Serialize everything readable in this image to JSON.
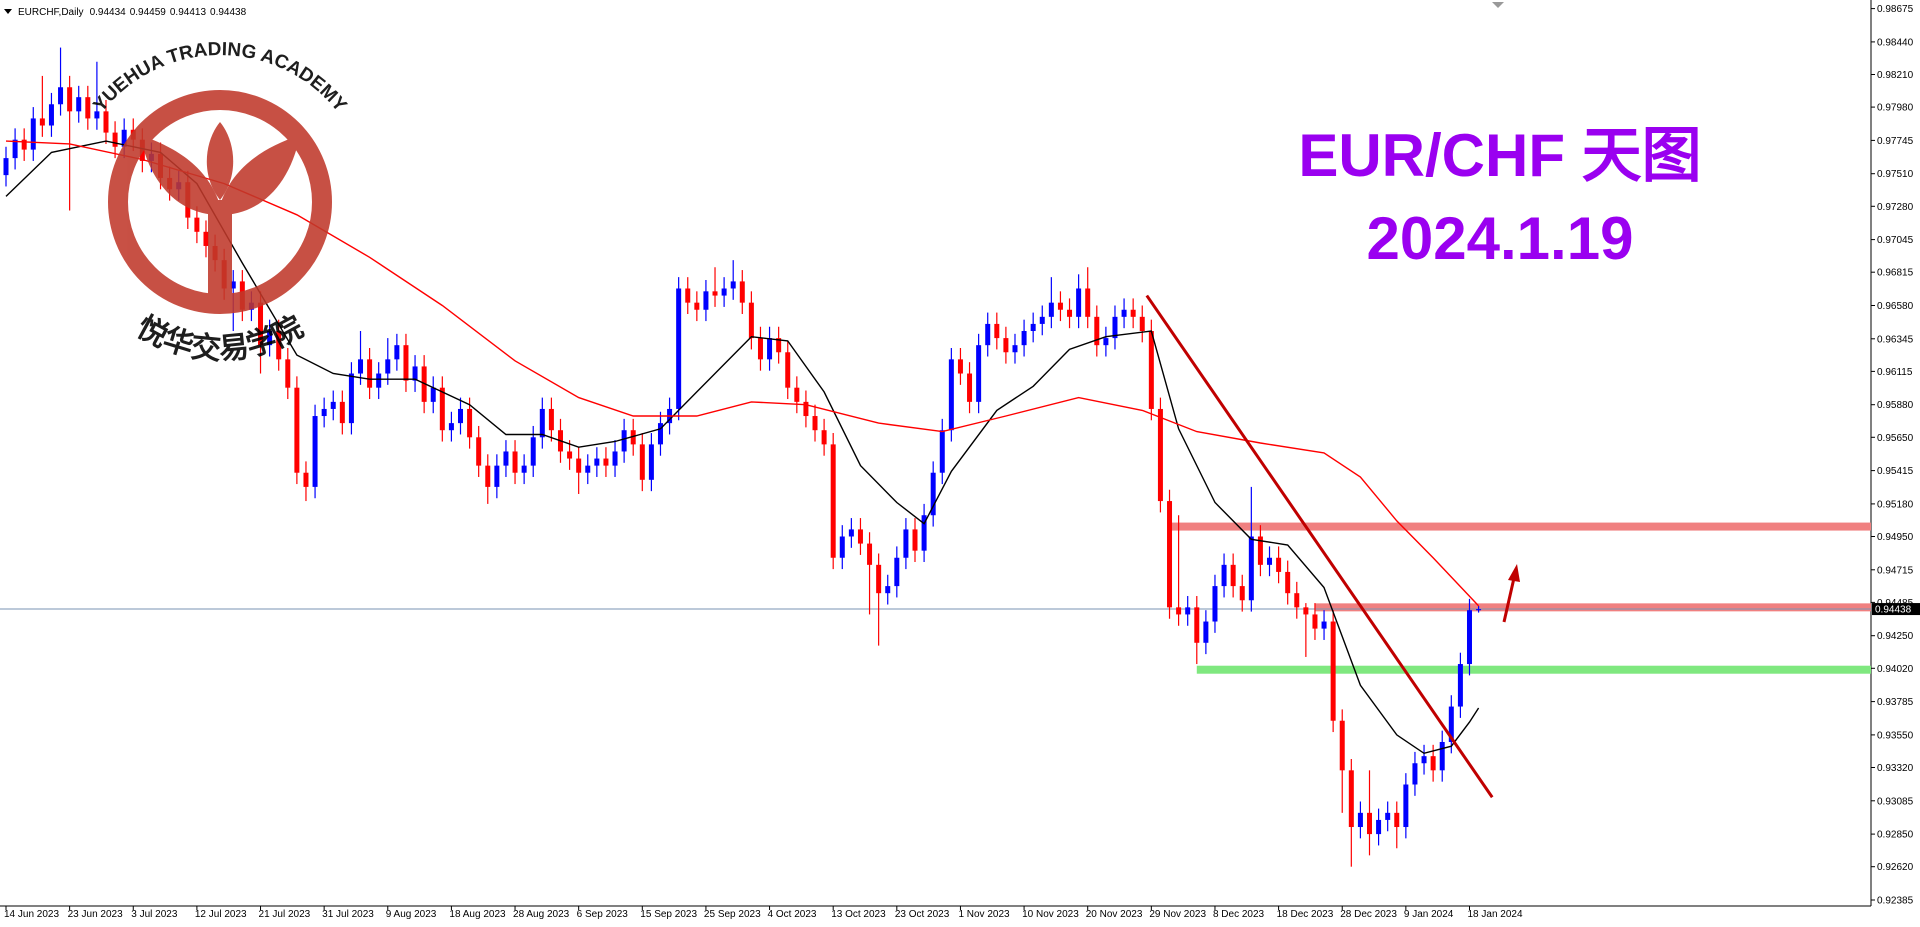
{
  "chart_data": {
    "type": "candlestick",
    "title": "EURCHF,Daily",
    "annotations": [
      "EUR/CHF 天图",
      "2024.1.19"
    ],
    "up_color": "#0000ff",
    "down_color": "#ff0000",
    "categories": [
      "14 Jun 2023",
      null,
      null,
      null,
      null,
      null,
      null,
      "23 Jun 2023",
      null,
      null,
      null,
      null,
      null,
      null,
      "3 Jul 2023",
      null,
      null,
      null,
      null,
      null,
      null,
      "12 Jul 2023",
      null,
      null,
      null,
      null,
      null,
      null,
      "21 Jul 2023",
      null,
      null,
      null,
      null,
      null,
      null,
      "31 Jul 2023",
      null,
      null,
      null,
      null,
      null,
      null,
      "9 Aug 2023",
      null,
      null,
      null,
      null,
      null,
      null,
      "18 Aug 2023",
      null,
      null,
      null,
      null,
      null,
      null,
      "28 Aug 2023",
      null,
      null,
      null,
      null,
      null,
      null,
      "6 Sep 2023",
      null,
      null,
      null,
      null,
      null,
      null,
      "15 Sep 2023",
      null,
      null,
      null,
      null,
      null,
      null,
      "25 Sep 2023",
      null,
      null,
      null,
      null,
      null,
      null,
      "4 Oct 2023",
      null,
      null,
      null,
      null,
      null,
      null,
      "13 Oct 2023",
      null,
      null,
      null,
      null,
      null,
      null,
      "23 Oct 2023",
      null,
      null,
      null,
      null,
      null,
      null,
      "1 Nov 2023",
      null,
      null,
      null,
      null,
      null,
      null,
      "10 Nov 2023",
      null,
      null,
      null,
      null,
      null,
      null,
      "20 Nov 2023",
      null,
      null,
      null,
      null,
      null,
      null,
      "29 Nov 2023",
      null,
      null,
      null,
      null,
      null,
      null,
      "8 Dec 2023",
      null,
      null,
      null,
      null,
      null,
      null,
      "18 Dec 2023",
      null,
      null,
      null,
      null,
      null,
      null,
      "28 Dec 2023",
      null,
      null,
      null,
      null,
      null,
      null,
      "9 Jan 2024",
      null,
      null,
      null,
      null,
      null,
      null,
      "18 Jan 2024",
      null
    ],
    "open": [
      0.975,
      0.9762,
      0.9775,
      0.9768,
      0.979,
      0.9785,
      0.98,
      0.9812,
      0.9795,
      0.9805,
      0.979,
      0.9795,
      0.978,
      0.977,
      0.9782,
      0.9775,
      0.976,
      0.9765,
      0.9748,
      0.974,
      0.9745,
      0.972,
      0.971,
      0.97,
      0.969,
      0.967,
      0.9675,
      0.9655,
      0.966,
      0.963,
      0.964,
      0.962,
      0.96,
      0.954,
      0.953,
      0.958,
      0.9585,
      0.959,
      0.9575,
      0.961,
      0.962,
      0.96,
      0.961,
      0.962,
      0.963,
      0.9605,
      0.9615,
      0.959,
      0.96,
      0.957,
      0.9575,
      0.9585,
      0.9565,
      0.9545,
      0.953,
      0.9545,
      0.9555,
      0.954,
      0.9545,
      0.9565,
      0.9585,
      0.957,
      0.9555,
      0.955,
      0.954,
      0.9545,
      0.955,
      0.9545,
      0.9555,
      0.957,
      0.956,
      0.9535,
      0.956,
      0.9575,
      0.9585,
      0.967,
      0.966,
      0.9655,
      0.9668,
      0.9665,
      0.967,
      0.9675,
      0.966,
      0.9635,
      0.962,
      0.9635,
      0.9625,
      0.96,
      0.959,
      0.958,
      0.957,
      0.956,
      0.948,
      0.9495,
      0.95,
      0.949,
      0.9475,
      0.9455,
      0.946,
      0.948,
      0.95,
      0.9485,
      0.951,
      0.954,
      0.957,
      0.962,
      0.961,
      0.959,
      0.963,
      0.9645,
      0.9635,
      0.9625,
      0.963,
      0.964,
      0.9645,
      0.965,
      0.966,
      0.9655,
      0.965,
      0.967,
      0.965,
      0.963,
      0.9635,
      0.965,
      0.9655,
      0.965,
      0.964,
      0.9585,
      0.952,
      0.9445,
      0.944,
      0.9445,
      0.942,
      0.9435,
      0.946,
      0.9475,
      0.946,
      0.945,
      0.9495,
      0.9475,
      0.948,
      0.947,
      0.9455,
      0.9445,
      0.944,
      0.943,
      0.9435,
      0.9365,
      0.933,
      0.929,
      0.93,
      0.9285,
      0.9295,
      0.93,
      0.929,
      0.932,
      0.9335,
      0.934,
      0.933,
      0.935,
      0.9375,
      0.9405,
      0.94434
    ],
    "high": [
      0.977,
      0.9783,
      0.9783,
      0.9798,
      0.982,
      0.9808,
      0.984,
      0.982,
      0.9813,
      0.9813,
      0.983,
      0.9803,
      0.9788,
      0.979,
      0.979,
      0.9783,
      0.9773,
      0.9773,
      0.9756,
      0.9753,
      0.9753,
      0.9728,
      0.9718,
      0.9708,
      0.9698,
      0.9683,
      0.9683,
      0.9668,
      0.9668,
      0.9648,
      0.9648,
      0.9628,
      0.9608,
      0.9548,
      0.9588,
      0.9593,
      0.9598,
      0.9598,
      0.9618,
      0.964,
      0.9628,
      0.9618,
      0.9635,
      0.9638,
      0.9638,
      0.9623,
      0.9623,
      0.9608,
      0.9608,
      0.9583,
      0.9593,
      0.9593,
      0.9573,
      0.9553,
      0.9553,
      0.9563,
      0.9563,
      0.9553,
      0.9573,
      0.9593,
      0.9593,
      0.9578,
      0.9563,
      0.9558,
      0.9553,
      0.9558,
      0.9558,
      0.9563,
      0.9578,
      0.9578,
      0.9568,
      0.9568,
      0.9583,
      0.9593,
      0.9678,
      0.9678,
      0.9668,
      0.9676,
      0.9685,
      0.9678,
      0.969,
      0.9683,
      0.9668,
      0.9643,
      0.9643,
      0.9643,
      0.9633,
      0.9608,
      0.9598,
      0.9588,
      0.9578,
      0.9568,
      0.9503,
      0.9508,
      0.9508,
      0.9498,
      0.9483,
      0.9468,
      0.9488,
      0.9508,
      0.9508,
      0.9518,
      0.9548,
      0.9578,
      0.9628,
      0.9628,
      0.9618,
      0.9638,
      0.9653,
      0.9653,
      0.9643,
      0.9638,
      0.9648,
      0.9653,
      0.9658,
      0.9678,
      0.9668,
      0.9663,
      0.968,
      0.9685,
      0.9658,
      0.9643,
      0.9658,
      0.9663,
      0.9663,
      0.9658,
      0.9648,
      0.9593,
      0.9528,
      0.951,
      0.9453,
      0.9453,
      0.9443,
      0.9468,
      0.9483,
      0.9483,
      0.9468,
      0.953,
      0.9503,
      0.9488,
      0.9488,
      0.9478,
      0.9463,
      0.9448,
      0.9448,
      0.9443,
      0.9443,
      0.9373,
      0.9338,
      0.9308,
      0.933,
      0.9303,
      0.9308,
      0.9308,
      0.9328,
      0.9343,
      0.9348,
      0.9348,
      0.9358,
      0.9383,
      0.9413,
      0.9451,
      0.94459
    ],
    "low": [
      0.9742,
      0.9754,
      0.976,
      0.976,
      0.9777,
      0.9777,
      0.9792,
      0.9725,
      0.9787,
      0.9782,
      0.9782,
      0.9772,
      0.9762,
      0.9762,
      0.9767,
      0.9752,
      0.9752,
      0.974,
      0.9732,
      0.9732,
      0.9712,
      0.9702,
      0.9692,
      0.9682,
      0.9662,
      0.964,
      0.9647,
      0.9647,
      0.961,
      0.9622,
      0.9612,
      0.9592,
      0.9532,
      0.952,
      0.9522,
      0.9572,
      0.9577,
      0.9567,
      0.9567,
      0.9602,
      0.9592,
      0.9592,
      0.9602,
      0.9612,
      0.9597,
      0.9597,
      0.9582,
      0.9582,
      0.9562,
      0.9562,
      0.9567,
      0.9557,
      0.9537,
      0.9518,
      0.9522,
      0.9537,
      0.9532,
      0.9532,
      0.9537,
      0.9557,
      0.9562,
      0.9547,
      0.9542,
      0.9525,
      0.9532,
      0.9537,
      0.9537,
      0.9537,
      0.9547,
      0.9552,
      0.9527,
      0.9527,
      0.9552,
      0.9567,
      0.9577,
      0.9652,
      0.9647,
      0.9647,
      0.9657,
      0.9657,
      0.9662,
      0.9652,
      0.9627,
      0.9612,
      0.9612,
      0.9617,
      0.9592,
      0.9582,
      0.9572,
      0.9562,
      0.9552,
      0.9472,
      0.9472,
      0.9487,
      0.9482,
      0.944,
      0.9418,
      0.9447,
      0.9452,
      0.9472,
      0.9477,
      0.9477,
      0.9502,
      0.9532,
      0.9562,
      0.9602,
      0.9582,
      0.9582,
      0.9622,
      0.9627,
      0.9617,
      0.9617,
      0.9622,
      0.9632,
      0.9637,
      0.9642,
      0.9647,
      0.9642,
      0.9642,
      0.9642,
      0.9622,
      0.9622,
      0.9627,
      0.9642,
      0.9642,
      0.9632,
      0.9577,
      0.9512,
      0.9437,
      0.9432,
      0.9432,
      0.9405,
      0.9412,
      0.9427,
      0.9452,
      0.9452,
      0.9442,
      0.9442,
      0.9467,
      0.9467,
      0.9462,
      0.9447,
      0.9437,
      0.941,
      0.9422,
      0.9422,
      0.9357,
      0.93,
      0.9262,
      0.9282,
      0.927,
      0.9277,
      0.9287,
      0.9275,
      0.9282,
      0.9312,
      0.9327,
      0.9322,
      0.9322,
      0.9342,
      0.9367,
      0.9397,
      0.94413
    ],
    "close": [
      0.9762,
      0.9775,
      0.9768,
      0.979,
      0.9785,
      0.98,
      0.9812,
      0.9795,
      0.9805,
      0.979,
      0.9795,
      0.978,
      0.977,
      0.9782,
      0.9775,
      0.976,
      0.9765,
      0.9748,
      0.974,
      0.9745,
      0.972,
      0.971,
      0.97,
      0.969,
      0.967,
      0.9675,
      0.9655,
      0.966,
      0.963,
      0.964,
      0.962,
      0.96,
      0.954,
      0.953,
      0.958,
      0.9585,
      0.959,
      0.9575,
      0.961,
      0.962,
      0.96,
      0.961,
      0.962,
      0.963,
      0.9605,
      0.9615,
      0.959,
      0.96,
      0.957,
      0.9575,
      0.9585,
      0.9565,
      0.9545,
      0.953,
      0.9545,
      0.9555,
      0.954,
      0.9545,
      0.9565,
      0.9585,
      0.957,
      0.9555,
      0.955,
      0.954,
      0.9545,
      0.955,
      0.9545,
      0.9555,
      0.957,
      0.956,
      0.9535,
      0.956,
      0.9575,
      0.9585,
      0.967,
      0.966,
      0.9655,
      0.9668,
      0.9665,
      0.967,
      0.9675,
      0.966,
      0.9635,
      0.962,
      0.9635,
      0.9625,
      0.96,
      0.959,
      0.958,
      0.957,
      0.956,
      0.948,
      0.9495,
      0.95,
      0.949,
      0.9475,
      0.9455,
      0.946,
      0.948,
      0.95,
      0.9485,
      0.951,
      0.954,
      0.957,
      0.962,
      0.961,
      0.959,
      0.963,
      0.9645,
      0.9635,
      0.9625,
      0.963,
      0.964,
      0.9645,
      0.965,
      0.966,
      0.9655,
      0.965,
      0.967,
      0.965,
      0.963,
      0.9635,
      0.965,
      0.9655,
      0.965,
      0.964,
      0.9585,
      0.952,
      0.9445,
      0.944,
      0.9445,
      0.942,
      0.9435,
      0.946,
      0.9475,
      0.946,
      0.945,
      0.9495,
      0.9475,
      0.948,
      0.947,
      0.9455,
      0.9445,
      0.944,
      0.943,
      0.9435,
      0.9365,
      0.933,
      0.929,
      0.93,
      0.9285,
      0.9295,
      0.93,
      0.929,
      0.932,
      0.9335,
      0.934,
      0.933,
      0.935,
      0.9375,
      0.9405,
      0.9443,
      0.94438
    ],
    "ylim": [
      0.92385,
      0.98675
    ],
    "yticks": [
      0.98675,
      {
        "value": 0.9844,
        "label": "0.98440"
      },
      {
        "value": 0.9821,
        "label": "0.98210"
      },
      {
        "value": 0.9798,
        "label": "0.97980"
      },
      0.97745,
      {
        "value": 0.9751,
        "label": "0.97510"
      },
      {
        "value": 0.9728,
        "label": "0.97280"
      },
      0.97045,
      0.96815,
      {
        "value": 0.9658,
        "label": "0.96580"
      },
      0.96345,
      0.96115,
      {
        "value": 0.9588,
        "label": "0.95880"
      },
      {
        "value": 0.9565,
        "label": "0.95650"
      },
      0.95415,
      {
        "value": 0.9518,
        "label": "0.95180"
      },
      {
        "value": 0.9495,
        "label": "0.94950"
      },
      0.94715,
      0.94485,
      {
        "value": 0.9425,
        "label": "0.94250"
      },
      {
        "value": 0.9402,
        "label": "0.94020"
      },
      0.93785,
      {
        "value": 0.9355,
        "label": "0.93550"
      },
      {
        "value": 0.9332,
        "label": "0.93320"
      },
      0.93085,
      {
        "value": 0.9285,
        "label": "0.92850"
      },
      {
        "value": 0.9262,
        "label": "0.92620"
      },
      0.92385
    ],
    "overlays": [
      {
        "color": "#000000",
        "x": [
          0,
          5,
          11,
          17,
          21,
          26,
          32,
          36,
          40,
          45,
          51,
          55,
          59,
          63,
          67,
          72,
          76,
          82,
          86,
          90,
          94,
          98,
          101,
          104,
          109,
          113,
          117,
          121,
          126,
          129,
          133,
          137,
          141,
          145,
          149,
          153,
          156,
          159,
          161,
          162
        ],
        "values": [
          0.9735,
          0.9766,
          0.9774,
          0.9766,
          0.9744,
          0.9688,
          0.9623,
          0.961,
          0.9606,
          0.9606,
          0.9588,
          0.9567,
          0.9567,
          0.9558,
          0.9562,
          0.9571,
          0.9597,
          0.9636,
          0.9633,
          0.9597,
          0.9545,
          0.9519,
          0.9504,
          0.9541,
          0.9584,
          0.9601,
          0.9627,
          0.9636,
          0.964,
          0.9571,
          0.9519,
          0.9493,
          0.9489,
          0.9459,
          0.939,
          0.9355,
          0.9342,
          0.9347,
          0.9364,
          0.9374
        ]
      },
      {
        "color": "#ff0000",
        "x": [
          0,
          7,
          15,
          24,
          32,
          40,
          48,
          56,
          63,
          69,
          76,
          82,
          88,
          96,
          103,
          110,
          118,
          125,
          131,
          138,
          145,
          149,
          153,
          157,
          162
        ],
        "values": [
          0.9774,
          0.9772,
          0.9761,
          0.9744,
          0.9722,
          0.9692,
          0.9658,
          0.9619,
          0.9593,
          0.958,
          0.958,
          0.959,
          0.9588,
          0.9575,
          0.9569,
          0.958,
          0.9593,
          0.9584,
          0.9569,
          0.9561,
          0.9554,
          0.9537,
          0.9506,
          0.948,
          0.9446
        ]
      }
    ],
    "levels": [
      {
        "value": 0.9502,
        "color": "#f08080",
        "from": 128
      },
      {
        "value": 0.9445,
        "color": "#f08080",
        "from": 144
      },
      {
        "value": 0.9401,
        "color": "#7fe87f",
        "from": 131
      }
    ],
    "trendline": {
      "color": "#c00000",
      "x": [
        125.5,
        163.5
      ],
      "values": [
        0.9665,
        0.9311
      ]
    }
  },
  "watermark": {
    "arc_text": "YUEHUA TRADING ACADEMY",
    "name": "悦华交易学院"
  }
}
